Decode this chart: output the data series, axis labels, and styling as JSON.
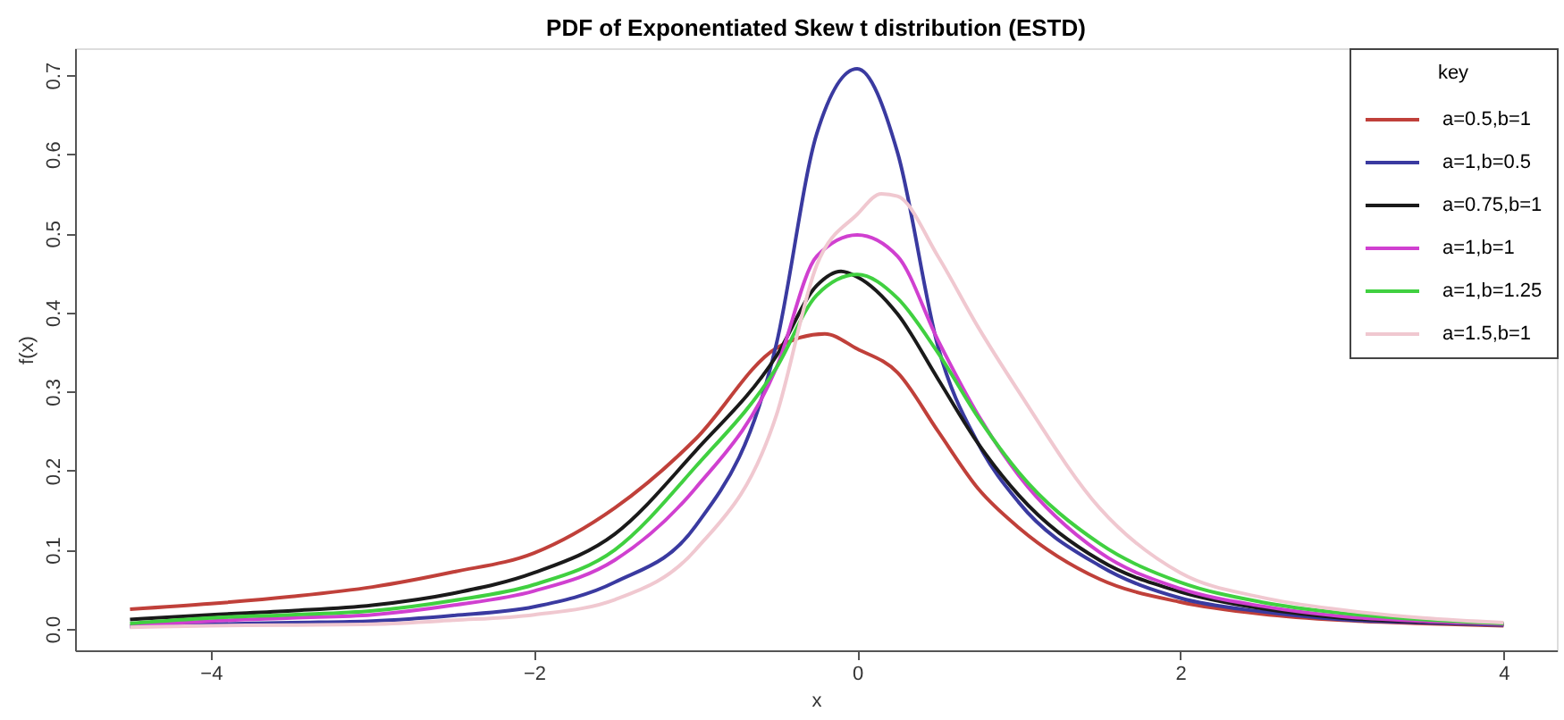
{
  "chart_data": {
    "type": "line",
    "title": "PDF of Exponentiated Skew t distribution (ESTD)",
    "xlabel": "x",
    "ylabel": "f(x)",
    "legend_title": "key",
    "xlim": [
      -4.84,
      4.33
    ],
    "xticks": [
      -4,
      -2,
      0,
      2,
      4
    ],
    "ylim": [
      -0.027,
      0.734
    ],
    "yticks": [
      {
        "value": 0,
        "label": "0.0"
      },
      0.1,
      0.2,
      0.3,
      0.4,
      0.5,
      0.6,
      0.7
    ],
    "grid": false,
    "legend": "top right",
    "marker": "none",
    "line_style": "solid",
    "series": [
      {
        "name": "a=0.5,b=1",
        "color": "#c0403a",
        "x": [
          -4.5,
          -4,
          -3.5,
          -3,
          -2.5,
          -2,
          -1.5,
          -1,
          -0.5,
          -0.2,
          0,
          0.25,
          0.5,
          0.75,
          1,
          1.5,
          2,
          2.5,
          3,
          3.5,
          4
        ],
        "values": [
          0.025,
          0.032,
          0.041,
          0.053,
          0.072,
          0.096,
          0.153,
          0.24,
          0.355,
          0.373,
          0.354,
          0.324,
          0.25,
          0.177,
          0.128,
          0.063,
          0.034,
          0.019,
          0.011,
          0.007,
          0.004
        ]
      },
      {
        "name": "a=1,b=0.5",
        "color": "#3a3aa0",
        "x": [
          -4.5,
          -4,
          -3.5,
          -3,
          -2.5,
          -2,
          -1.5,
          -1,
          -0.5,
          -0.25,
          0,
          0.25,
          0.5,
          0.75,
          1,
          1.5,
          2,
          2.5,
          3,
          3.5,
          4
        ],
        "values": [
          0.003,
          0.006,
          0.008,
          0.01,
          0.017,
          0.028,
          0.059,
          0.13,
          0.36,
          0.626,
          0.708,
          0.602,
          0.357,
          0.234,
          0.16,
          0.08,
          0.039,
          0.022,
          0.012,
          0.008,
          0.005
        ]
      },
      {
        "name": "a=0.75,b=1",
        "color": "#1a1a1a",
        "x": [
          -4.5,
          -4,
          -3.5,
          -3,
          -2.5,
          -2,
          -1.5,
          -1,
          -0.5,
          -0.25,
          -0.1,
          0,
          0.25,
          0.5,
          0.75,
          1,
          1.5,
          2,
          2.5,
          3,
          3.5,
          4
        ],
        "values": [
          0.012,
          0.018,
          0.023,
          0.03,
          0.045,
          0.071,
          0.12,
          0.225,
          0.345,
          0.434,
          0.452,
          0.445,
          0.398,
          0.316,
          0.234,
          0.169,
          0.087,
          0.047,
          0.026,
          0.014,
          0.009,
          0.006
        ]
      },
      {
        "name": "a=1,b=1",
        "color": "#d040d0",
        "x": [
          -4.5,
          -4,
          -3.5,
          -3,
          -2.5,
          -2,
          -1.5,
          -1,
          -0.5,
          -0.25,
          0,
          0.25,
          0.5,
          0.75,
          1,
          1.5,
          2,
          2.5,
          3,
          3.5,
          4
        ],
        "values": [
          0.004,
          0.01,
          0.014,
          0.018,
          0.03,
          0.048,
          0.087,
          0.178,
          0.33,
          0.471,
          0.498,
          0.471,
          0.365,
          0.27,
          0.194,
          0.097,
          0.051,
          0.029,
          0.016,
          0.01,
          0.006
        ]
      },
      {
        "name": "a=1,b=1.25",
        "color": "#40d040",
        "x": [
          -4.5,
          -4,
          -3.5,
          -3,
          -2.5,
          -2,
          -1.5,
          -1,
          -0.5,
          -0.25,
          0,
          0.25,
          0.5,
          0.75,
          1,
          1.5,
          2,
          2.5,
          3,
          3.5,
          4
        ],
        "values": [
          0.007,
          0.014,
          0.018,
          0.023,
          0.036,
          0.056,
          0.1,
          0.205,
          0.33,
          0.422,
          0.448,
          0.418,
          0.349,
          0.267,
          0.198,
          0.108,
          0.059,
          0.034,
          0.02,
          0.012,
          0.007
        ]
      },
      {
        "name": "a=1.5,b=1",
        "color": "#f0c8d0",
        "x": [
          -4.5,
          -4,
          -3.5,
          -3,
          -2.5,
          -2,
          -1.5,
          -1,
          -0.5,
          -0.25,
          0,
          0.15,
          0.25,
          0.5,
          0.75,
          1,
          1.5,
          2,
          2.5,
          3,
          3.5,
          4
        ],
        "values": [
          0.002,
          0.004,
          0.005,
          0.006,
          0.011,
          0.018,
          0.037,
          0.1,
          0.27,
          0.46,
          0.524,
          0.55,
          0.547,
          0.471,
          0.381,
          0.3,
          0.153,
          0.071,
          0.04,
          0.024,
          0.014,
          0.008
        ]
      }
    ]
  }
}
